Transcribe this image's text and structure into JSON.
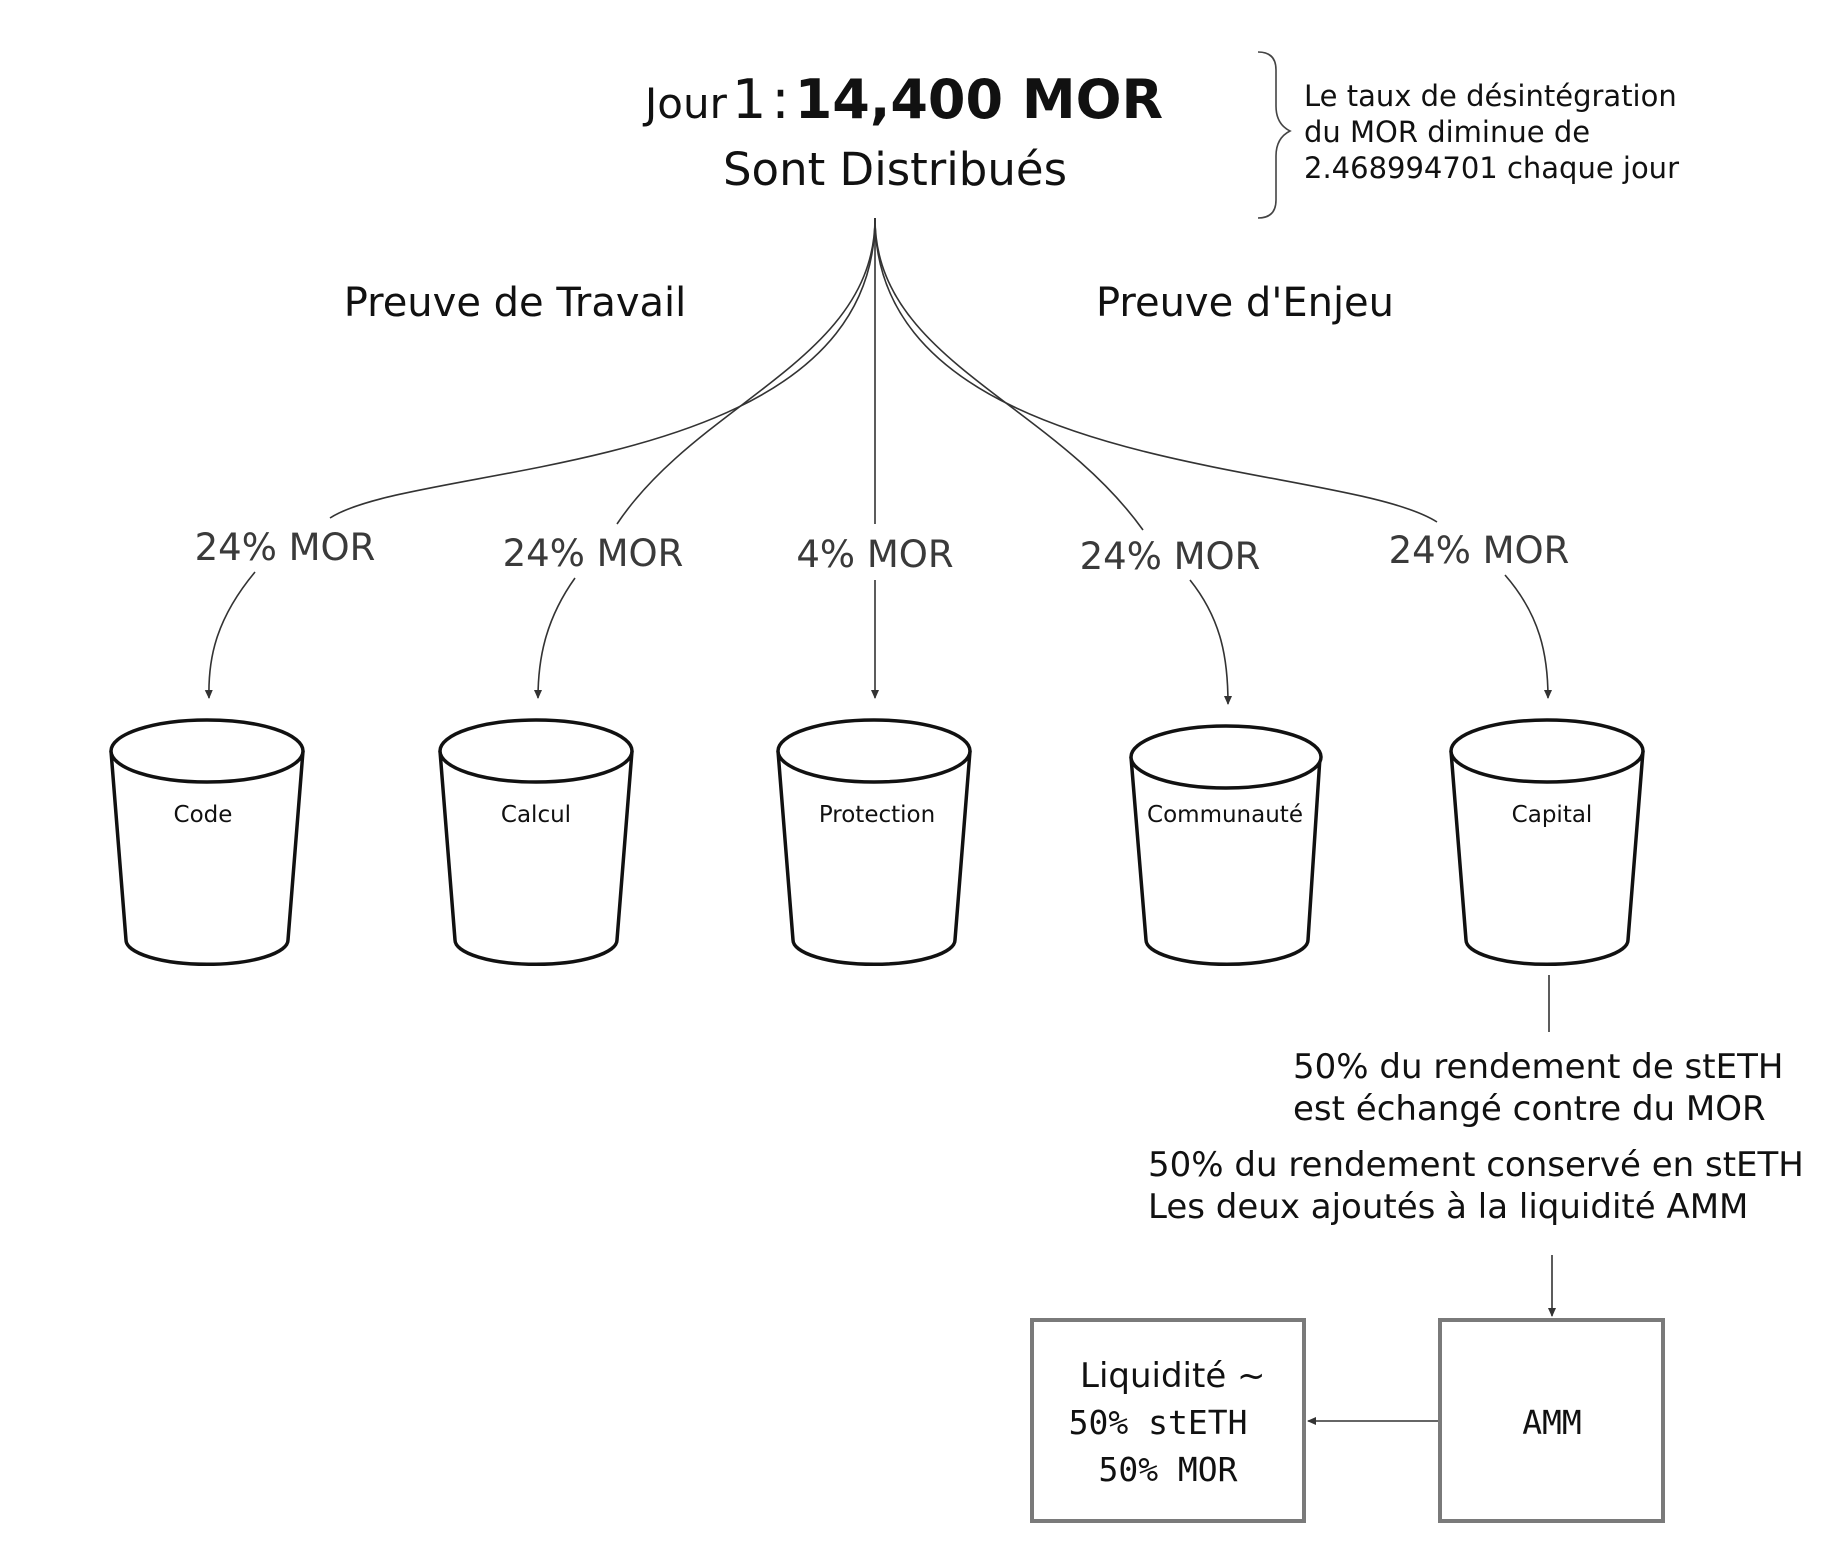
{
  "header": {
    "day_prefix": "Jour",
    "day_number": "1",
    "amount": "14,400 MOR",
    "subtitle": "Sont Distribués"
  },
  "decay_note": {
    "lines": [
      "Le taux de désintégration",
      "du MOR diminue de",
      "2.468994701 chaque jour"
    ]
  },
  "categories": {
    "work": "Preuve de Travail",
    "stake": "Preuve d'Enjeu"
  },
  "buckets": [
    {
      "label": "Code",
      "share": "24% MOR"
    },
    {
      "label": "Calcul",
      "share": "24% MOR"
    },
    {
      "label": "Protection",
      "share": "4% MOR"
    },
    {
      "label": "Communauté",
      "share": "24% MOR"
    },
    {
      "label": "Capital",
      "share": "24% MOR"
    }
  ],
  "capital_notes": {
    "swap_lines": [
      "50% du rendement de stETH",
      "est échangé contre du MOR"
    ],
    "keep_lines": [
      "50% du rendement conservé en stETH",
      "Les deux ajoutés à la liquidité AMM"
    ]
  },
  "boxes": {
    "liquidity_title": "Liquidité  ~",
    "liquidity_lines": [
      "50% stETH",
      "50% MOR"
    ],
    "amm_label": "AMM"
  },
  "colors": {
    "line": "#333333",
    "box_border": "#7a7a7a",
    "text": "#111111"
  }
}
